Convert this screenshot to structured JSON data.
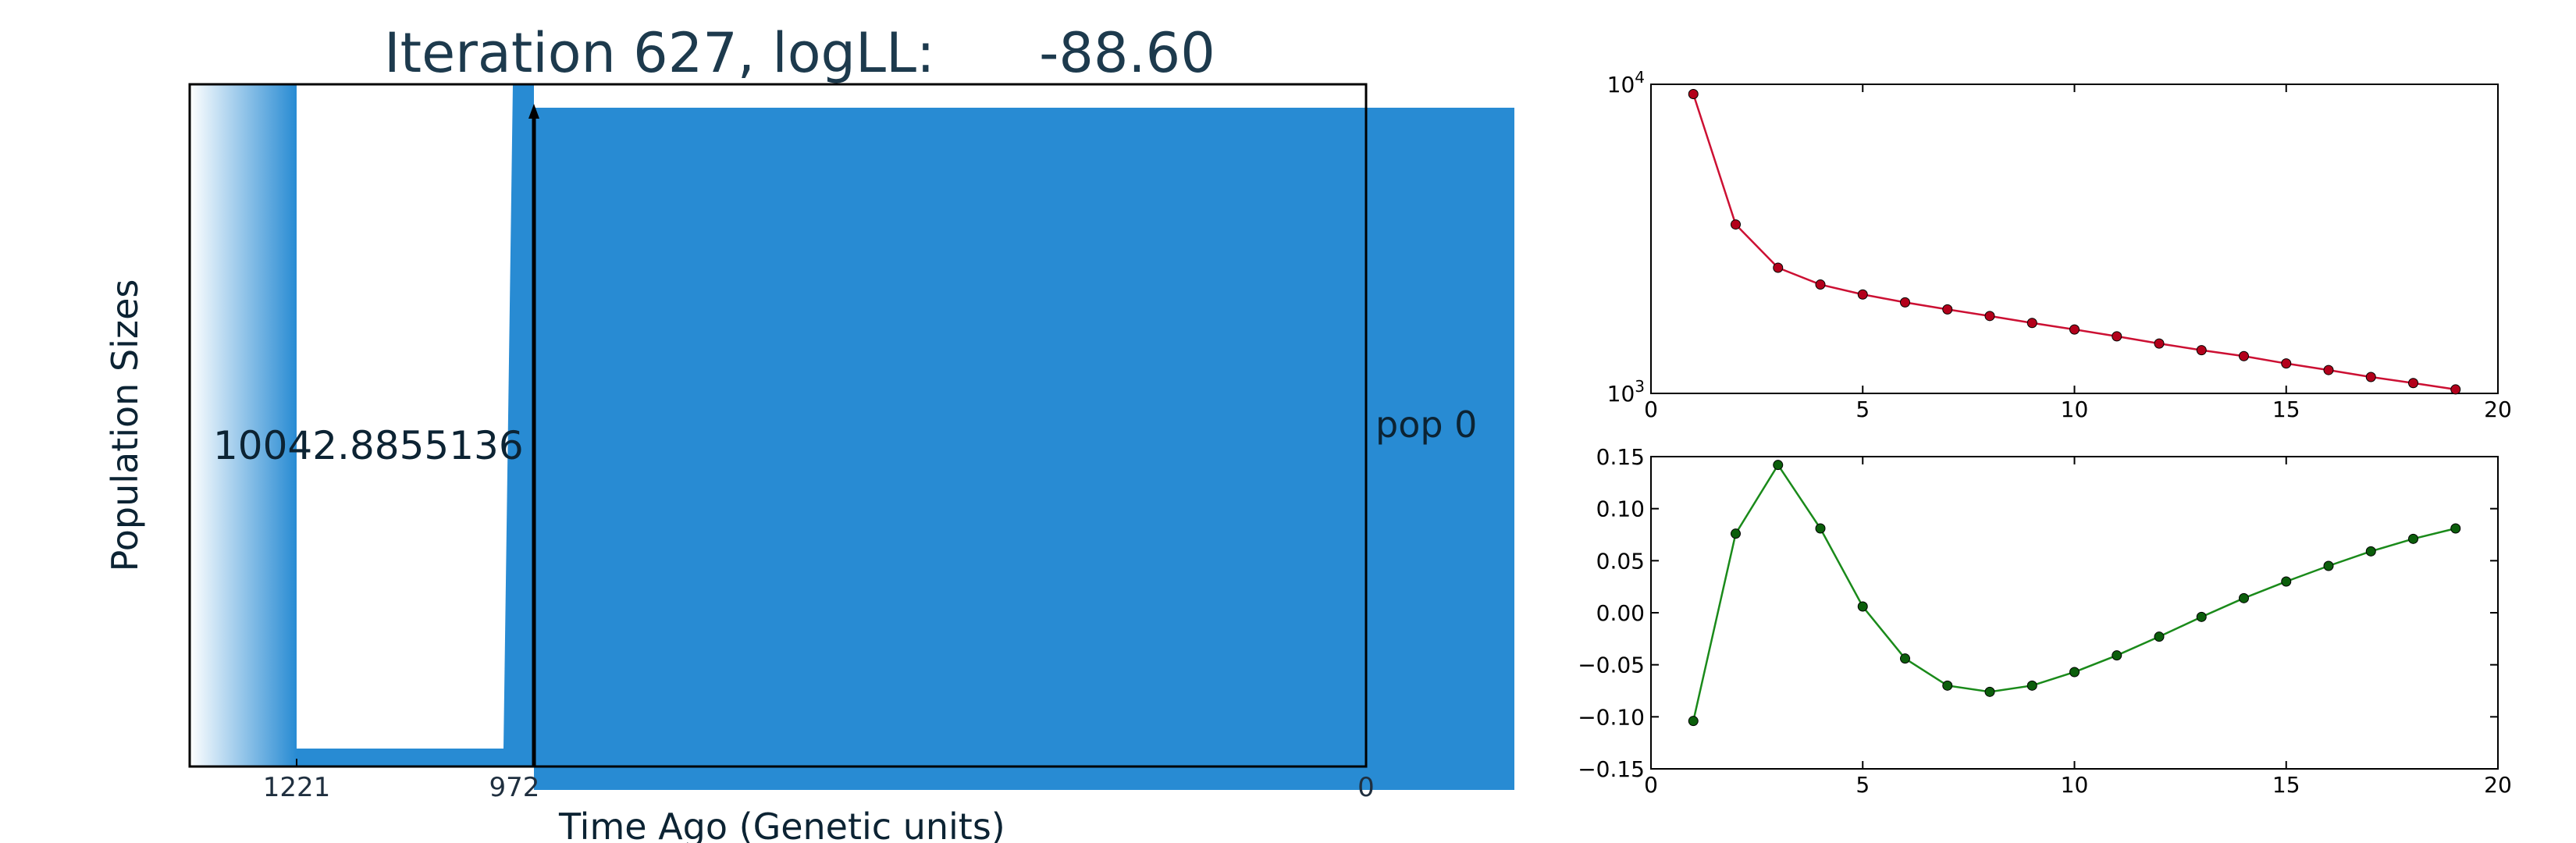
{
  "title": "Iteration 627, logLL:      -88.60",
  "colors": {
    "pop_fill": "#288bd3",
    "pop_gradient_start": "#ffffff",
    "text": "#0c2333",
    "likelihood_line": "#cc1033",
    "likelihood_point": "#b3001b",
    "derivative_line": "#1a8a1a",
    "derivative_point": "#0b5e0b"
  },
  "chart_data": [
    {
      "type": "area",
      "title": "Iteration 627, logLL:      -88.60",
      "xlabel": "Time Ago (Genetic units)",
      "ylabel": "Population Sizes",
      "x_ticks": [
        "1221",
        "972",
        "0"
      ],
      "population_label": "pop 0",
      "population_size_text": "10042.8855136",
      "grid": false
    },
    {
      "type": "line",
      "yscale": "log",
      "xlim": [
        0,
        20
      ],
      "ylim": [
        1000,
        10000
      ],
      "x_ticks": [
        "0",
        "5",
        "10",
        "15",
        "20"
      ],
      "y_ticks": [
        {
          "base": "10",
          "exp": "4"
        },
        {
          "base": "10",
          "exp": "3"
        }
      ],
      "x": [
        1,
        2,
        3,
        4,
        5,
        6,
        7,
        8,
        9,
        10,
        11,
        12,
        13,
        14,
        15,
        16,
        17,
        18,
        19
      ],
      "values": [
        9300,
        3520,
        2550,
        2250,
        2090,
        1970,
        1870,
        1780,
        1690,
        1610,
        1530,
        1450,
        1380,
        1320,
        1250,
        1190,
        1130,
        1080,
        1030
      ],
      "grid": false
    },
    {
      "type": "line",
      "xlim": [
        0,
        20
      ],
      "ylim": [
        -0.15,
        0.15
      ],
      "x_ticks": [
        "0",
        "5",
        "10",
        "15",
        "20"
      ],
      "y_ticks": [
        "0.15",
        "0.10",
        "0.05",
        "0.00",
        "−0.05",
        "−0.10",
        "−0.15"
      ],
      "x": [
        1,
        2,
        3,
        4,
        5,
        6,
        7,
        8,
        9,
        10,
        11,
        12,
        13,
        14,
        15,
        16,
        17,
        18,
        19
      ],
      "values": [
        -0.104,
        0.076,
        0.142,
        0.081,
        0.006,
        -0.044,
        -0.07,
        -0.076,
        -0.07,
        -0.057,
        -0.041,
        -0.023,
        -0.004,
        0.014,
        0.03,
        0.045,
        0.059,
        0.071,
        0.081
      ],
      "grid": false
    }
  ]
}
